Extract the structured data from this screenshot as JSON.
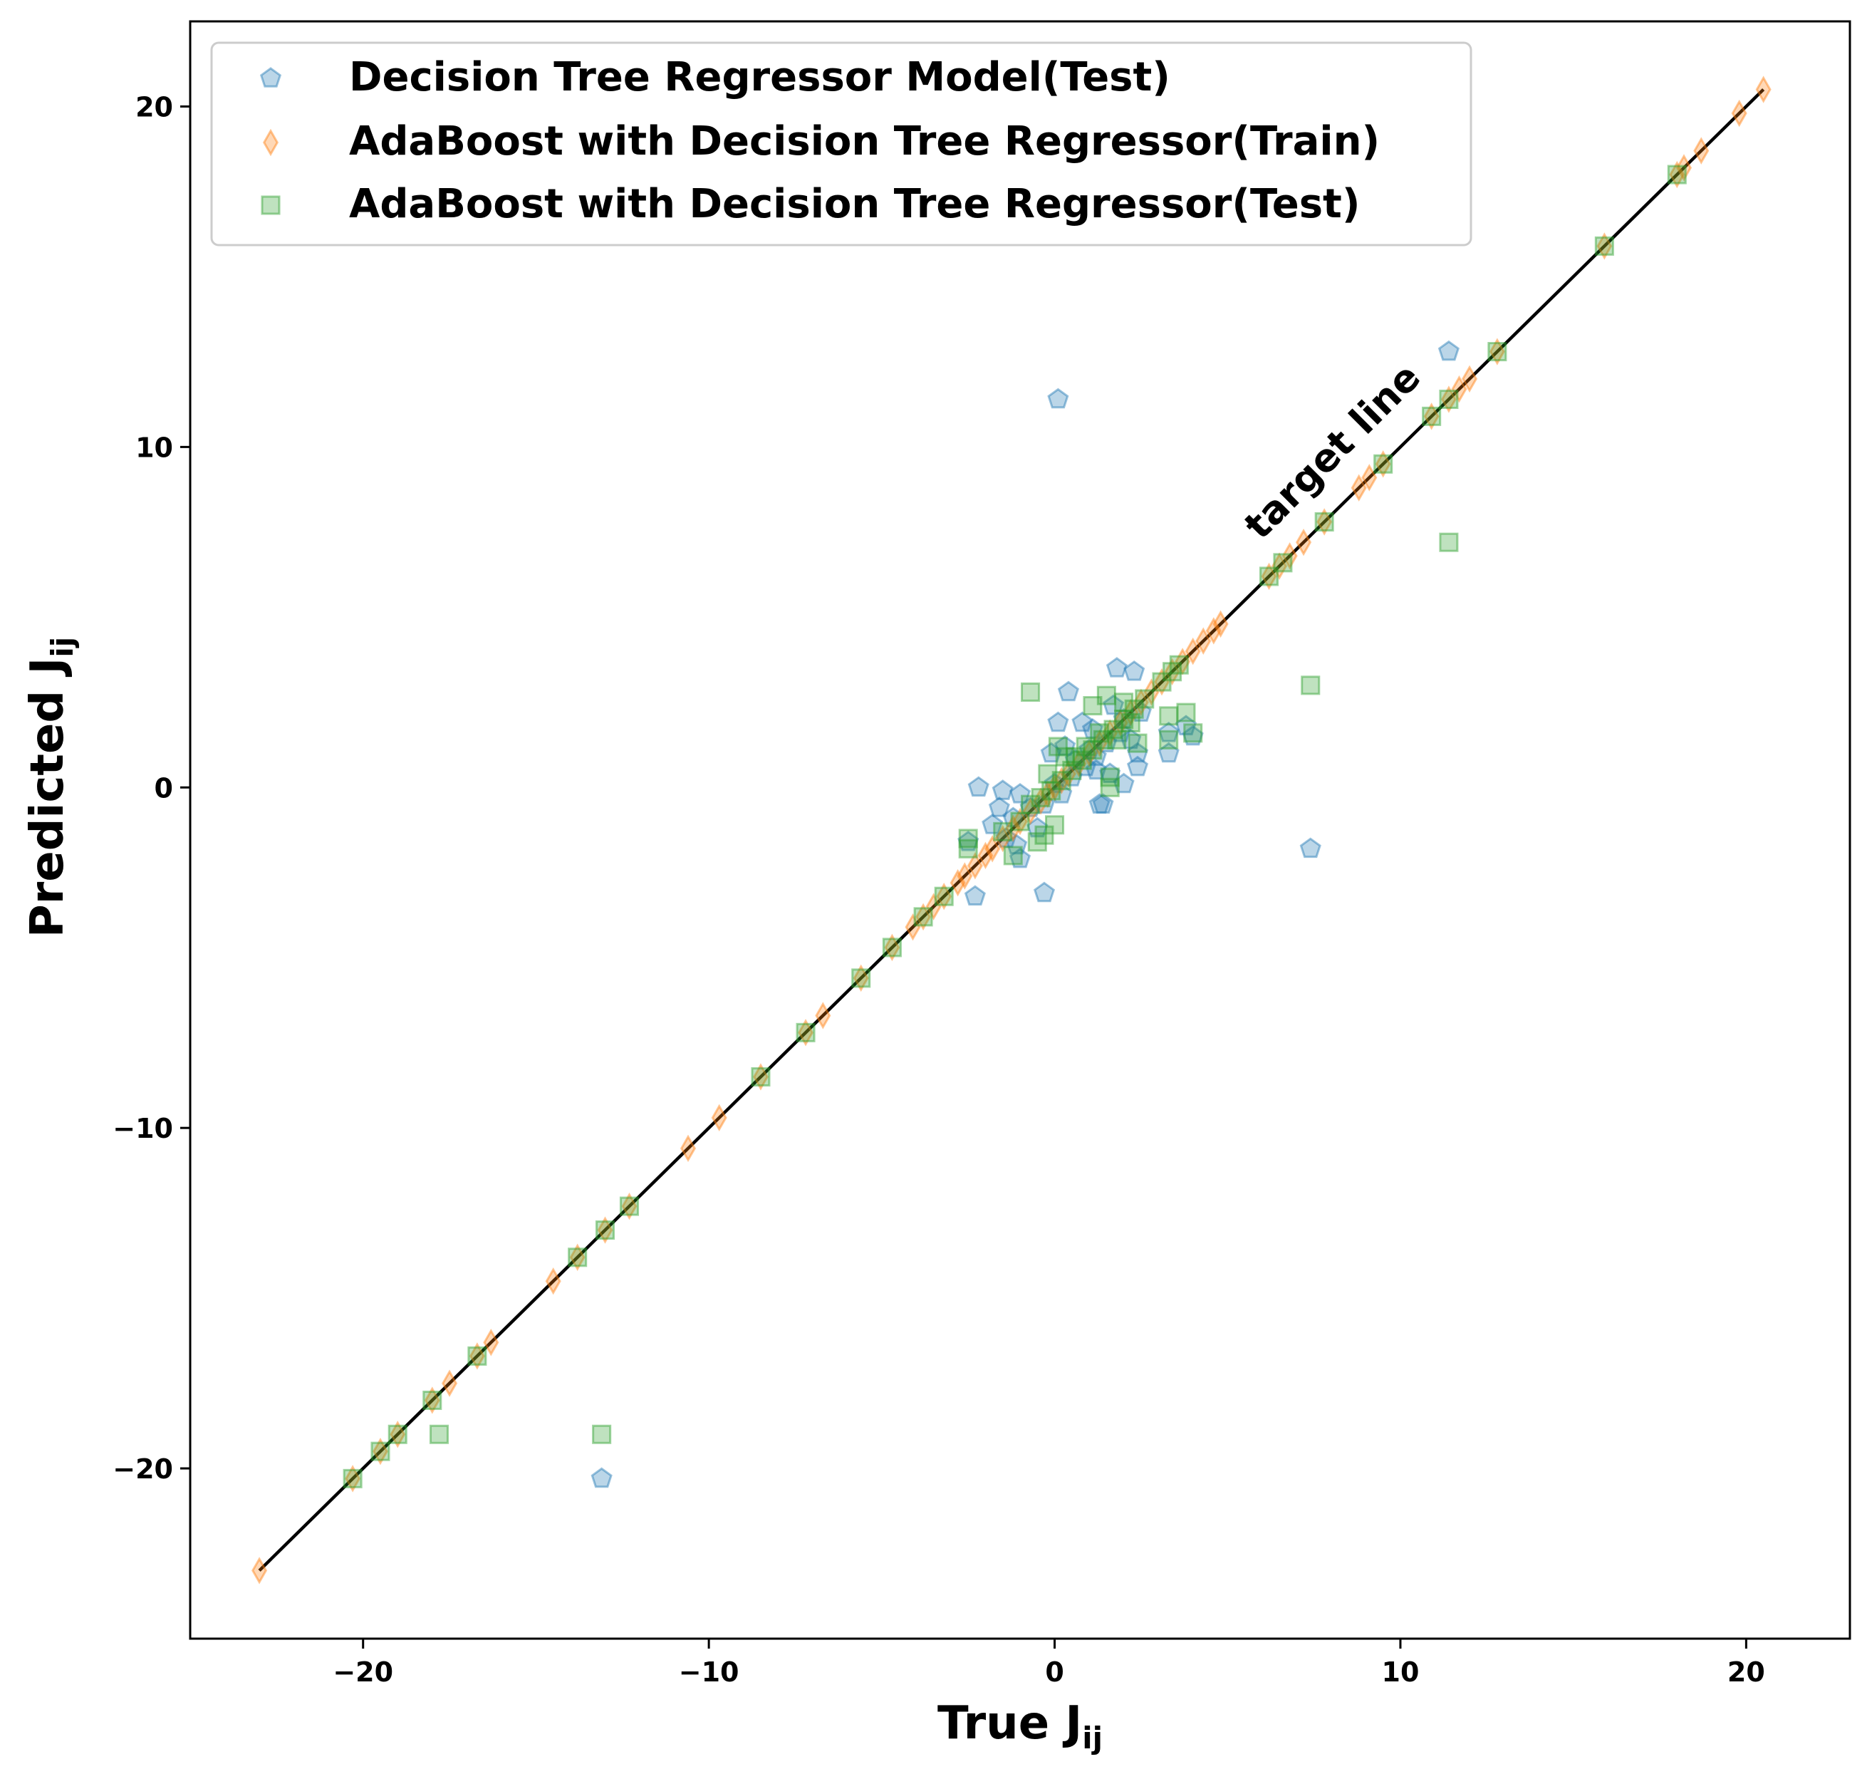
{
  "chart_data": {
    "type": "scatter",
    "xlabel": "True J",
    "xlabel_sub": "ij",
    "ylabel": "Predicted J",
    "ylabel_sub": "ij",
    "xlim": [
      -25,
      23
    ],
    "ylim": [
      -25,
      22.5
    ],
    "xticks": [
      -20,
      -10,
      0,
      10,
      20
    ],
    "yticks": [
      -20,
      -10,
      0,
      10,
      20
    ],
    "xtick_labels": [
      "−20",
      "−10",
      "0",
      "10",
      "20"
    ],
    "ytick_labels": [
      "−20",
      "−10",
      "0",
      "10",
      "20"
    ],
    "grid": false,
    "legend_position": "top-left",
    "annotation": {
      "text": "target line",
      "x": 8.3,
      "y": 9.6,
      "rotation_deg": -45
    },
    "target_line": {
      "from": [
        -23,
        -23
      ],
      "to": [
        20.5,
        20.5
      ],
      "color": "#000000"
    },
    "series": [
      {
        "name": "Decision Tree Regressor Model(Test)",
        "marker": "pentagon",
        "color": "#1f77b4",
        "points": [
          [
            0.1,
            11.4
          ],
          [
            11.4,
            12.8
          ],
          [
            7.4,
            -1.8
          ],
          [
            -13.1,
            -20.3
          ],
          [
            -2.2,
            0.0
          ],
          [
            -1.5,
            -0.1
          ],
          [
            -1.0,
            -0.2
          ],
          [
            -2.3,
            -3.2
          ],
          [
            -0.3,
            -3.1
          ],
          [
            0.4,
            2.8
          ],
          [
            1.8,
            3.5
          ],
          [
            2.3,
            3.4
          ],
          [
            0.1,
            1.9
          ],
          [
            0.8,
            1.9
          ],
          [
            1.1,
            1.7
          ],
          [
            -0.1,
            1.0
          ],
          [
            0.3,
            1.2
          ],
          [
            0.6,
            0.8
          ],
          [
            1.2,
            0.5
          ],
          [
            1.4,
            -0.5
          ],
          [
            1.3,
            -0.5
          ],
          [
            2.0,
            0.1
          ],
          [
            1.6,
            0.4
          ],
          [
            2.2,
            1.4
          ],
          [
            2.4,
            1.0
          ],
          [
            2.4,
            0.6
          ],
          [
            3.3,
            1.6
          ],
          [
            3.3,
            1.0
          ],
          [
            3.8,
            1.8
          ],
          [
            4.0,
            1.5
          ],
          [
            -1.6,
            -0.6
          ],
          [
            -1.2,
            -0.9
          ],
          [
            -1.4,
            -1.5
          ],
          [
            -1.0,
            -2.1
          ],
          [
            -1.1,
            -1.7
          ],
          [
            -0.5,
            -1.2
          ],
          [
            -0.3,
            -0.5
          ],
          [
            0.2,
            -0.2
          ],
          [
            0.5,
            0.3
          ],
          [
            0.9,
            0.6
          ],
          [
            1.5,
            1.3
          ],
          [
            1.9,
            1.6
          ],
          [
            2.5,
            2.2
          ],
          [
            1.7,
            2.4
          ],
          [
            1.0,
            1.1
          ],
          [
            -0.7,
            -0.6
          ],
          [
            0.0,
            0.1
          ],
          [
            -2.5,
            -1.6
          ],
          [
            -1.8,
            -1.1
          ],
          [
            2.0,
            2.0
          ],
          [
            1.2,
            0.9
          ]
        ]
      },
      {
        "name": "AdaBoost with Decision Tree Regressor(Train)",
        "marker": "thin_diamond",
        "color": "#ff7f0e",
        "points": [
          [
            -23.0,
            -23.0
          ],
          [
            -20.3,
            -20.3
          ],
          [
            -19.5,
            -19.5
          ],
          [
            -19.0,
            -19.0
          ],
          [
            -18.0,
            -18.0
          ],
          [
            -17.5,
            -17.5
          ],
          [
            -16.7,
            -16.7
          ],
          [
            -16.3,
            -16.3
          ],
          [
            -14.5,
            -14.5
          ],
          [
            -13.8,
            -13.8
          ],
          [
            -13.0,
            -13.0
          ],
          [
            -12.3,
            -12.3
          ],
          [
            -10.6,
            -10.6
          ],
          [
            -9.7,
            -9.7
          ],
          [
            -8.5,
            -8.5
          ],
          [
            -7.2,
            -7.2
          ],
          [
            -6.7,
            -6.7
          ],
          [
            -5.6,
            -5.6
          ],
          [
            -4.7,
            -4.7
          ],
          [
            -4.1,
            -4.1
          ],
          [
            -3.8,
            -3.8
          ],
          [
            -3.5,
            -3.5
          ],
          [
            -3.2,
            -3.2
          ],
          [
            -2.8,
            -2.8
          ],
          [
            -2.6,
            -2.6
          ],
          [
            -2.3,
            -2.3
          ],
          [
            -2.0,
            -2.0
          ],
          [
            -1.8,
            -1.8
          ],
          [
            -1.5,
            -1.5
          ],
          [
            -1.2,
            -1.2
          ],
          [
            -1.0,
            -1.0
          ],
          [
            -0.7,
            -0.7
          ],
          [
            -0.4,
            -0.4
          ],
          [
            -0.2,
            -0.2
          ],
          [
            0.0,
            0.0
          ],
          [
            0.2,
            0.2
          ],
          [
            0.4,
            0.4
          ],
          [
            0.7,
            0.7
          ],
          [
            1.0,
            1.0
          ],
          [
            1.3,
            1.3
          ],
          [
            1.6,
            1.6
          ],
          [
            1.9,
            1.9
          ],
          [
            2.2,
            2.2
          ],
          [
            2.5,
            2.5
          ],
          [
            2.8,
            2.8
          ],
          [
            3.1,
            3.1
          ],
          [
            3.4,
            3.4
          ],
          [
            3.7,
            3.7
          ],
          [
            4.0,
            4.0
          ],
          [
            4.3,
            4.3
          ],
          [
            4.6,
            4.6
          ],
          [
            4.8,
            4.8
          ],
          [
            6.2,
            6.2
          ],
          [
            6.5,
            6.5
          ],
          [
            6.8,
            6.8
          ],
          [
            7.2,
            7.2
          ],
          [
            7.8,
            7.8
          ],
          [
            8.8,
            8.8
          ],
          [
            9.1,
            9.1
          ],
          [
            9.5,
            9.5
          ],
          [
            10.9,
            10.9
          ],
          [
            11.4,
            11.4
          ],
          [
            11.7,
            11.7
          ],
          [
            12.0,
            12.0
          ],
          [
            12.8,
            12.8
          ],
          [
            15.9,
            15.9
          ],
          [
            18.0,
            18.0
          ],
          [
            18.2,
            18.2
          ],
          [
            18.7,
            18.7
          ],
          [
            19.8,
            19.8
          ],
          [
            20.5,
            20.5
          ]
        ]
      },
      {
        "name": "AdaBoost with Decision Tree Regressor(Test)",
        "marker": "square",
        "color": "#2ca02c",
        "points": [
          [
            11.4,
            7.2
          ],
          [
            7.4,
            3.0
          ],
          [
            -13.1,
            -19.0
          ],
          [
            -17.8,
            -19.0
          ],
          [
            -0.7,
            2.8
          ],
          [
            -20.3,
            -20.3
          ],
          [
            -19.5,
            -19.5
          ],
          [
            -19.0,
            -19.0
          ],
          [
            -18.0,
            -18.0
          ],
          [
            -16.7,
            -16.7
          ],
          [
            -13.8,
            -13.8
          ],
          [
            -13.0,
            -13.0
          ],
          [
            -12.3,
            -12.3
          ],
          [
            -8.5,
            -8.5
          ],
          [
            -7.2,
            -7.2
          ],
          [
            -5.6,
            -5.6
          ],
          [
            -4.7,
            -4.7
          ],
          [
            -3.8,
            -3.8
          ],
          [
            -3.2,
            -3.2
          ],
          [
            -2.5,
            -1.5
          ],
          [
            -2.5,
            -1.8
          ],
          [
            -1.5,
            -1.3
          ],
          [
            -1.2,
            -2.0
          ],
          [
            -0.5,
            -1.6
          ],
          [
            -0.3,
            -1.4
          ],
          [
            0.0,
            -1.1
          ],
          [
            0.1,
            1.2
          ],
          [
            0.3,
            0.9
          ],
          [
            1.1,
            2.4
          ],
          [
            1.5,
            2.7
          ],
          [
            1.6,
            0.3
          ],
          [
            1.6,
            0.0
          ],
          [
            2.0,
            2.5
          ],
          [
            2.4,
            1.3
          ],
          [
            3.3,
            2.1
          ],
          [
            3.3,
            1.4
          ],
          [
            3.8,
            2.2
          ],
          [
            4.0,
            1.6
          ],
          [
            -1.0,
            -1.0
          ],
          [
            -0.7,
            -0.5
          ],
          [
            -0.4,
            -0.3
          ],
          [
            -0.1,
            -0.1
          ],
          [
            0.2,
            0.2
          ],
          [
            0.5,
            0.5
          ],
          [
            0.8,
            0.8
          ],
          [
            1.1,
            1.1
          ],
          [
            1.4,
            1.4
          ],
          [
            1.7,
            1.7
          ],
          [
            2.0,
            2.0
          ],
          [
            2.3,
            2.3
          ],
          [
            2.6,
            2.6
          ],
          [
            3.1,
            3.1
          ],
          [
            3.4,
            3.4
          ],
          [
            3.6,
            3.6
          ],
          [
            6.2,
            6.2
          ],
          [
            6.6,
            6.6
          ],
          [
            7.8,
            7.8
          ],
          [
            9.5,
            9.5
          ],
          [
            10.9,
            10.9
          ],
          [
            11.4,
            11.4
          ],
          [
            12.8,
            12.8
          ],
          [
            15.9,
            15.9
          ],
          [
            18.0,
            18.0
          ],
          [
            1.3,
            1.6
          ],
          [
            1.8,
            1.4
          ],
          [
            0.6,
            0.9
          ],
          [
            2.2,
            1.9
          ],
          [
            -0.2,
            0.4
          ],
          [
            0.9,
            1.2
          ]
        ]
      }
    ]
  }
}
